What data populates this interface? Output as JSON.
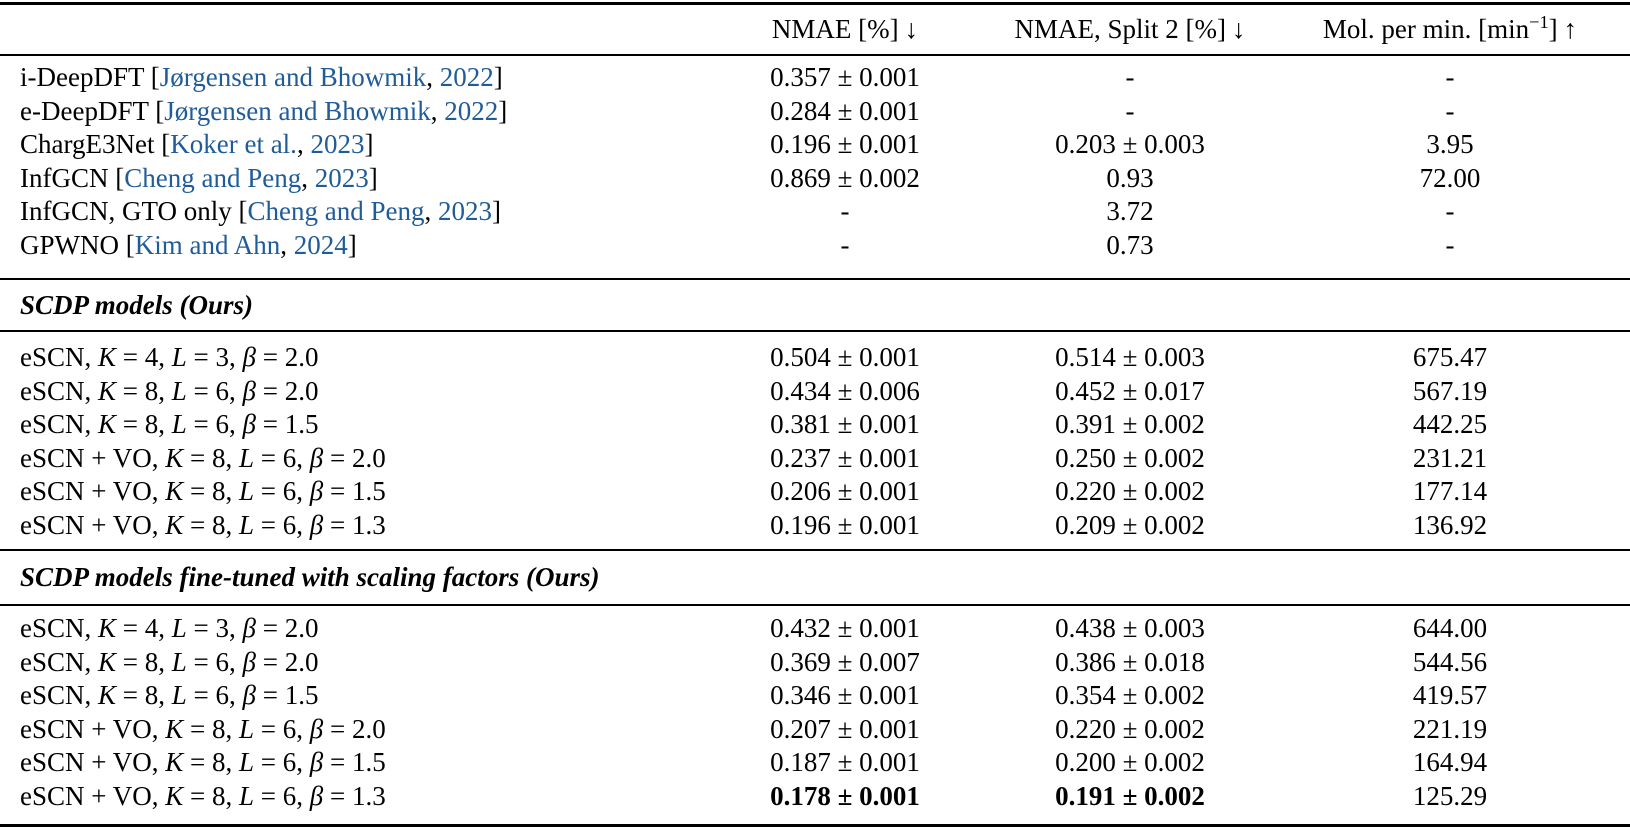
{
  "colors": {
    "background": "#ffffff",
    "text": "#000000",
    "citation_link": "#1f5c99",
    "rule": "#000000"
  },
  "header": {
    "col_nmae": "NMAE [%]",
    "col_nmae_arrow": "↓",
    "col_split2": "NMAE, Split 2 [%]",
    "col_split2_arrow": "↓",
    "col_mol_prefix": "Mol. per min. [min",
    "col_mol_exponent": "−1",
    "col_mol_suffix": "]",
    "col_mol_arrow": "↑"
  },
  "baseline_rows": [
    {
      "name": "i-DeepDFT",
      "open": " [",
      "authors": "Jørgensen and Bhowmik",
      "sep": ", ",
      "year": "2022",
      "close": "]",
      "nmae": "0.357 ± 0.001",
      "split2": "-",
      "mol": "-"
    },
    {
      "name": "e-DeepDFT",
      "open": " [",
      "authors": "Jørgensen and Bhowmik",
      "sep": ", ",
      "year": "2022",
      "close": "]",
      "nmae": "0.284 ± 0.001",
      "split2": "-",
      "mol": "-"
    },
    {
      "name": "ChargE3Net",
      "open": " [",
      "authors": "Koker et al.",
      "sep": ", ",
      "year": "2023",
      "close": "]",
      "nmae": "0.196 ± 0.001",
      "split2": "0.203 ± 0.003",
      "mol": "3.95"
    },
    {
      "name": "InfGCN",
      "open": " [",
      "authors": "Cheng and Peng",
      "sep": ", ",
      "year": "2023",
      "close": "]",
      "nmae": "0.869 ± 0.002",
      "split2": "0.93",
      "mol": "72.00"
    },
    {
      "name": "InfGCN, GTO only",
      "open": " [",
      "authors": "Cheng and Peng",
      "sep": ", ",
      "year": "2023",
      "close": "]",
      "nmae": "-",
      "split2": "3.72",
      "mol": "-"
    },
    {
      "name": "GPWNO",
      "open": " [",
      "authors": "Kim and Ahn",
      "sep": ", ",
      "year": "2024",
      "close": "]",
      "nmae": "-",
      "split2": "0.73",
      "mol": "-"
    }
  ],
  "section_scdp": {
    "title": "SCDP models (Ours)"
  },
  "scdp_rows": [
    {
      "p1": "eSCN, ",
      "p2": "K",
      "p3": " = 4, ",
      "p4": "L",
      "p5": " = 3, ",
      "p6": "β",
      "p7": " = 2.0",
      "nmae": "0.504 ± 0.001",
      "split2": "0.514 ± 0.003",
      "mol": "675.47"
    },
    {
      "p1": "eSCN, ",
      "p2": "K",
      "p3": " = 8, ",
      "p4": "L",
      "p5": " = 6, ",
      "p6": "β",
      "p7": " = 2.0",
      "nmae": "0.434 ± 0.006",
      "split2": "0.452 ± 0.017",
      "mol": "567.19"
    },
    {
      "p1": "eSCN, ",
      "p2": "K",
      "p3": " = 8, ",
      "p4": "L",
      "p5": " = 6, ",
      "p6": "β",
      "p7": " = 1.5",
      "nmae": "0.381 ± 0.001",
      "split2": "0.391 ± 0.002",
      "mol": "442.25"
    },
    {
      "p1": "eSCN + VO, ",
      "p2": "K",
      "p3": " = 8, ",
      "p4": "L",
      "p5": " = 6, ",
      "p6": "β",
      "p7": " = 2.0",
      "nmae": "0.237 ± 0.001",
      "split2": "0.250 ± 0.002",
      "mol": "231.21"
    },
    {
      "p1": "eSCN + VO, ",
      "p2": "K",
      "p3": " = 8, ",
      "p4": "L",
      "p5": " = 6, ",
      "p6": "β",
      "p7": " = 1.5",
      "nmae": "0.206 ± 0.001",
      "split2": "0.220 ± 0.002",
      "mol": "177.14"
    },
    {
      "p1": "eSCN + VO, ",
      "p2": "K",
      "p3": " = 8, ",
      "p4": "L",
      "p5": " = 6, ",
      "p6": "β",
      "p7": " = 1.3",
      "nmae": "0.196 ± 0.001",
      "split2": "0.209 ± 0.002",
      "mol": "136.92"
    }
  ],
  "section_ft": {
    "title": "SCDP models fine-tuned with scaling factors (Ours)"
  },
  "ft_rows": [
    {
      "p1": "eSCN, ",
      "p2": "K",
      "p3": " = 4, ",
      "p4": "L",
      "p5": " = 3, ",
      "p6": "β",
      "p7": " = 2.0",
      "nmae": "0.432 ± 0.001",
      "split2": "0.438 ± 0.003",
      "mol": "644.00"
    },
    {
      "p1": "eSCN, ",
      "p2": "K",
      "p3": " = 8, ",
      "p4": "L",
      "p5": " = 6, ",
      "p6": "β",
      "p7": " = 2.0",
      "nmae": "0.369 ± 0.007",
      "split2": "0.386 ± 0.018",
      "mol": "544.56"
    },
    {
      "p1": "eSCN, ",
      "p2": "K",
      "p3": " = 8, ",
      "p4": "L",
      "p5": " = 6, ",
      "p6": "β",
      "p7": " = 1.5",
      "nmae": "0.346 ± 0.001",
      "split2": "0.354 ± 0.002",
      "mol": "419.57"
    },
    {
      "p1": "eSCN + VO, ",
      "p2": "K",
      "p3": " = 8, ",
      "p4": "L",
      "p5": " = 6, ",
      "p6": "β",
      "p7": " = 2.0",
      "nmae": "0.207 ± 0.001",
      "split2": "0.220 ± 0.002",
      "mol": "221.19"
    },
    {
      "p1": "eSCN + VO, ",
      "p2": "K",
      "p3": " = 8, ",
      "p4": "L",
      "p5": " = 6, ",
      "p6": "β",
      "p7": " = 1.5",
      "nmae": "0.187 ± 0.001",
      "split2": "0.200 ± 0.002",
      "mol": "164.94"
    },
    {
      "p1": "eSCN + VO, ",
      "p2": "K",
      "p3": " = 8, ",
      "p4": "L",
      "p5": " = 6, ",
      "p6": "β",
      "p7": " = 1.3",
      "nmae": "0.178 ± 0.001",
      "split2": "0.191 ± 0.002",
      "mol": "125.29"
    }
  ]
}
